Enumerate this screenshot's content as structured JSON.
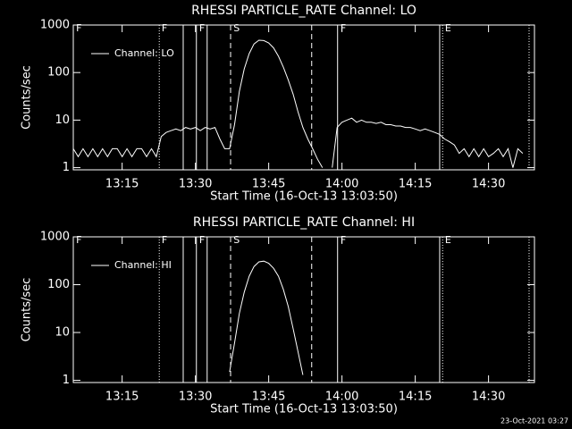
{
  "chart_data": [
    {
      "type": "line",
      "title": "RHESSI PARTICLE_RATE Channel: LO",
      "xlabel": "Start Time (16-Oct-13 13:03:50)",
      "ylabel": "Counts/sec",
      "log_y": true,
      "xlim": [
        785,
        879.4
      ],
      "ylim": [
        0.9,
        1000
      ],
      "xticks": [
        {
          "value": 795,
          "label": "13:15"
        },
        {
          "value": 810,
          "label": "13:30"
        },
        {
          "value": 825,
          "label": "13:45"
        },
        {
          "value": 840,
          "label": "14:00"
        },
        {
          "value": 855,
          "label": "14:15"
        },
        {
          "value": 870,
          "label": "14:30"
        }
      ],
      "yticks": [
        1,
        10,
        100,
        1000
      ],
      "series": [
        {
          "name": "Channel: LO",
          "color": "#ffffff",
          "x": [
            785,
            786,
            787,
            788,
            789,
            790,
            791,
            792,
            793,
            794,
            795,
            796,
            797,
            798,
            799,
            800,
            801,
            802,
            803,
            804,
            805,
            806,
            807,
            808,
            809,
            810,
            811,
            812,
            813,
            814,
            815,
            816,
            817,
            818,
            819,
            820,
            821,
            822,
            823,
            824,
            825,
            826,
            827,
            828,
            829,
            830,
            831,
            832,
            833,
            834,
            835,
            836,
            837,
            838,
            839,
            840,
            841,
            842,
            843,
            844,
            845,
            846,
            847,
            848,
            849,
            850,
            851,
            852,
            853,
            854,
            855,
            856,
            857,
            858,
            859,
            860,
            861,
            862,
            863,
            864,
            865,
            866,
            867,
            868,
            869,
            870,
            871,
            872,
            873,
            874,
            875,
            876,
            877
          ],
          "values": [
            2.5,
            1.7,
            2.5,
            1.7,
            2.5,
            1.7,
            2.5,
            1.7,
            2.5,
            2.5,
            1.7,
            2.5,
            1.7,
            2.5,
            2.5,
            1.7,
            2.5,
            1.7,
            4.5,
            5.5,
            6,
            6.5,
            6,
            7,
            6.5,
            7,
            6,
            7,
            6.5,
            7,
            4,
            2.5,
            2.5,
            8,
            40,
            120,
            250,
            400,
            480,
            470,
            420,
            330,
            220,
            130,
            70,
            35,
            15,
            7,
            4,
            2.5,
            1.5,
            1,
            null,
            1,
            7,
            9,
            10,
            11,
            9,
            10,
            9,
            9,
            8.5,
            9,
            8,
            8,
            7.5,
            7.5,
            7,
            7,
            6.5,
            6,
            6.5,
            6,
            5.5,
            5,
            4,
            3.5,
            3,
            2,
            2.5,
            1.7,
            2.5,
            1.7,
            2.5,
            1.7,
            2,
            2.5,
            1.7,
            2.5,
            1,
            2.5,
            2
          ]
        }
      ],
      "events": [
        {
          "x": 802.6,
          "style": "dotted"
        },
        {
          "x": 807.5,
          "style": "solid"
        },
        {
          "x": 810.2,
          "style": "solid"
        },
        {
          "x": 812.4,
          "style": "solid"
        },
        {
          "x": 817.2,
          "style": "dashed"
        },
        {
          "x": 833.8,
          "style": "dashed"
        },
        {
          "x": 839.1,
          "style": "solid"
        },
        {
          "x": 860,
          "style": "solid"
        },
        {
          "x": 860.6,
          "style": "dotted"
        },
        {
          "x": 878.3,
          "style": "dotted"
        }
      ],
      "flags": [
        {
          "x": 785.4,
          "label": "F"
        },
        {
          "x": 802.9,
          "label": "F"
        },
        {
          "x": 810.6,
          "label": "F"
        },
        {
          "x": 817.6,
          "label": "S"
        },
        {
          "x": 839.5,
          "label": "F"
        },
        {
          "x": 860.9,
          "label": "E"
        }
      ]
    },
    {
      "type": "line",
      "title": "RHESSI PARTICLE_RATE Channel: HI",
      "xlabel": "Start Time (16-Oct-13 13:03:50)",
      "ylabel": "Counts/sec",
      "log_y": true,
      "xlim": [
        785,
        879.4
      ],
      "ylim": [
        0.9,
        1000
      ],
      "xticks": [
        {
          "value": 795,
          "label": "13:15"
        },
        {
          "value": 810,
          "label": "13:30"
        },
        {
          "value": 825,
          "label": "13:45"
        },
        {
          "value": 840,
          "label": "14:00"
        },
        {
          "value": 855,
          "label": "14:15"
        },
        {
          "value": 870,
          "label": "14:30"
        }
      ],
      "yticks": [
        1,
        10,
        100,
        1000
      ],
      "series": [
        {
          "name": "Channel: HI",
          "color": "#ffffff",
          "x": [
            817,
            818,
            819,
            820,
            821,
            822,
            823,
            824,
            825,
            826,
            827,
            828,
            829,
            830,
            831,
            832
          ],
          "values": [
            1.5,
            6,
            25,
            70,
            150,
            240,
            300,
            310,
            280,
            220,
            150,
            80,
            35,
            12,
            4,
            1.3
          ]
        }
      ],
      "events": [
        {
          "x": 802.6,
          "style": "dotted"
        },
        {
          "x": 807.5,
          "style": "solid"
        },
        {
          "x": 810.2,
          "style": "solid"
        },
        {
          "x": 812.4,
          "style": "solid"
        },
        {
          "x": 817.2,
          "style": "dashed"
        },
        {
          "x": 833.8,
          "style": "dashed"
        },
        {
          "x": 839.1,
          "style": "solid"
        },
        {
          "x": 860,
          "style": "solid"
        },
        {
          "x": 860.6,
          "style": "dotted"
        },
        {
          "x": 878.3,
          "style": "dotted"
        }
      ],
      "flags": [
        {
          "x": 785.4,
          "label": "F"
        },
        {
          "x": 802.9,
          "label": "F"
        },
        {
          "x": 810.6,
          "label": "F"
        },
        {
          "x": 817.6,
          "label": "S"
        },
        {
          "x": 839.5,
          "label": "F"
        },
        {
          "x": 860.9,
          "label": "E"
        }
      ]
    }
  ],
  "footer": "23-Oct-2021 03:27"
}
